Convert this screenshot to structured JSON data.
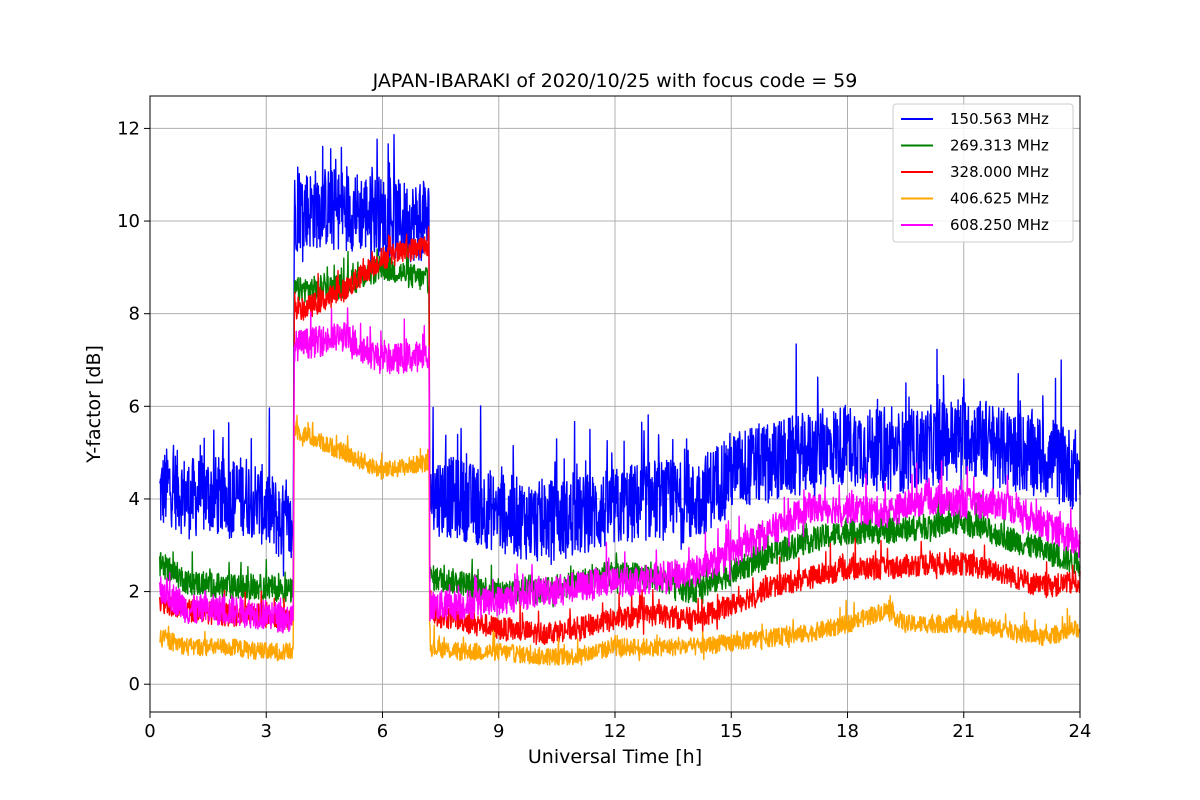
{
  "chart_data": {
    "type": "line",
    "title": "JAPAN-IBARAKI of 2020/10/25 with focus code = 59",
    "xlabel": "Universal Time [h]",
    "ylabel": "Y-factor [dB]",
    "xlim": [
      0,
      24
    ],
    "ylim": [
      -0.6,
      12.7
    ],
    "xticks": [
      0,
      3,
      6,
      9,
      12,
      15,
      18,
      21,
      24
    ],
    "yticks": [
      0,
      2,
      4,
      6,
      8,
      10,
      12
    ],
    "grid": true,
    "legend_position": "top-right",
    "x_start": 0.25,
    "x_end": 24,
    "gaps": [
      [
        3.7,
        3.72
      ],
      [
        7.2,
        7.22
      ]
    ],
    "series": [
      {
        "name": "150.563 MHz",
        "color": "#0000ff",
        "anchors": [
          [
            0.25,
            4.1
          ],
          [
            0.5,
            4.3
          ],
          [
            1.0,
            4.0
          ],
          [
            1.5,
            4.1
          ],
          [
            2.0,
            4.0
          ],
          [
            2.5,
            4.1
          ],
          [
            3.0,
            3.8
          ],
          [
            3.5,
            3.4
          ],
          [
            3.7,
            3.3
          ],
          [
            3.72,
            10.2
          ],
          [
            4.5,
            10.3
          ],
          [
            5.5,
            10.2
          ],
          [
            6.5,
            10.0
          ],
          [
            7.2,
            10.0
          ],
          [
            7.22,
            4.1
          ],
          [
            8.0,
            4.0
          ],
          [
            9.0,
            3.7
          ],
          [
            10.0,
            3.5
          ],
          [
            11.0,
            3.6
          ],
          [
            12.0,
            3.8
          ],
          [
            13.0,
            4.0
          ],
          [
            14.0,
            3.9
          ],
          [
            15.0,
            4.6
          ],
          [
            16.0,
            4.8
          ],
          [
            17.0,
            5.0
          ],
          [
            18.0,
            5.2
          ],
          [
            19.0,
            5.0
          ],
          [
            20.0,
            5.1
          ],
          [
            21.0,
            5.4
          ],
          [
            22.0,
            5.1
          ],
          [
            23.0,
            4.9
          ],
          [
            24.0,
            4.6
          ]
        ],
        "noise": 1.6
      },
      {
        "name": "269.313 MHz",
        "color": "#008000",
        "anchors": [
          [
            0.25,
            2.6
          ],
          [
            1.0,
            2.2
          ],
          [
            2.0,
            2.1
          ],
          [
            3.0,
            2.1
          ],
          [
            3.7,
            2.0
          ],
          [
            3.72,
            8.5
          ],
          [
            5.0,
            8.6
          ],
          [
            6.0,
            9.0
          ],
          [
            7.2,
            8.7
          ],
          [
            7.22,
            2.3
          ],
          [
            8.0,
            2.2
          ],
          [
            9.0,
            2.0
          ],
          [
            10.0,
            2.0
          ],
          [
            11.0,
            2.2
          ],
          [
            12.0,
            2.4
          ],
          [
            13.0,
            2.3
          ],
          [
            14.0,
            2.0
          ],
          [
            15.0,
            2.4
          ],
          [
            16.0,
            2.8
          ],
          [
            17.0,
            3.1
          ],
          [
            18.0,
            3.3
          ],
          [
            19.0,
            3.3
          ],
          [
            20.0,
            3.4
          ],
          [
            21.0,
            3.5
          ],
          [
            22.0,
            3.2
          ],
          [
            23.0,
            2.9
          ],
          [
            24.0,
            2.6
          ]
        ],
        "noise": 0.5
      },
      {
        "name": "328.000 MHz",
        "color": "#ff0000",
        "anchors": [
          [
            0.25,
            1.8
          ],
          [
            1.0,
            1.6
          ],
          [
            2.0,
            1.5
          ],
          [
            3.0,
            1.5
          ],
          [
            3.7,
            1.4
          ],
          [
            3.72,
            8.0
          ],
          [
            5.0,
            8.5
          ],
          [
            6.0,
            9.2
          ],
          [
            7.2,
            9.5
          ],
          [
            7.22,
            1.5
          ],
          [
            8.0,
            1.4
          ],
          [
            9.0,
            1.2
          ],
          [
            10.0,
            1.1
          ],
          [
            11.0,
            1.2
          ],
          [
            12.0,
            1.4
          ],
          [
            13.0,
            1.5
          ],
          [
            14.0,
            1.4
          ],
          [
            15.0,
            1.7
          ],
          [
            16.0,
            2.1
          ],
          [
            17.0,
            2.3
          ],
          [
            18.0,
            2.5
          ],
          [
            19.0,
            2.5
          ],
          [
            20.0,
            2.6
          ],
          [
            21.0,
            2.6
          ],
          [
            22.0,
            2.4
          ],
          [
            23.0,
            2.1
          ],
          [
            24.0,
            2.2
          ]
        ],
        "noise": 0.45
      },
      {
        "name": "406.625 MHz",
        "color": "#ffa500",
        "anchors": [
          [
            0.25,
            1.0
          ],
          [
            1.0,
            0.8
          ],
          [
            2.0,
            0.8
          ],
          [
            3.0,
            0.7
          ],
          [
            3.7,
            0.7
          ],
          [
            3.72,
            5.5
          ],
          [
            5.0,
            5.0
          ],
          [
            6.0,
            4.6
          ],
          [
            7.2,
            4.8
          ],
          [
            7.22,
            0.8
          ],
          [
            8.0,
            0.7
          ],
          [
            9.0,
            0.7
          ],
          [
            10.0,
            0.6
          ],
          [
            11.0,
            0.6
          ],
          [
            12.0,
            0.8
          ],
          [
            13.0,
            0.8
          ],
          [
            14.0,
            0.8
          ],
          [
            15.0,
            0.9
          ],
          [
            16.0,
            1.0
          ],
          [
            17.0,
            1.1
          ],
          [
            18.0,
            1.3
          ],
          [
            19.0,
            1.6
          ],
          [
            19.5,
            1.3
          ],
          [
            20.0,
            1.3
          ],
          [
            21.0,
            1.3
          ],
          [
            22.0,
            1.2
          ],
          [
            23.0,
            1.0
          ],
          [
            24.0,
            1.2
          ]
        ],
        "noise": 0.35
      },
      {
        "name": "608.250 MHz",
        "color": "#ff00ff",
        "anchors": [
          [
            0.25,
            2.1
          ],
          [
            1.0,
            1.6
          ],
          [
            2.0,
            1.6
          ],
          [
            3.0,
            1.5
          ],
          [
            3.7,
            1.4
          ],
          [
            3.72,
            7.3
          ],
          [
            5.0,
            7.5
          ],
          [
            6.0,
            7.0
          ],
          [
            7.2,
            7.1
          ],
          [
            7.22,
            1.7
          ],
          [
            8.0,
            1.7
          ],
          [
            9.0,
            1.8
          ],
          [
            10.0,
            2.0
          ],
          [
            11.0,
            2.1
          ],
          [
            12.0,
            2.2
          ],
          [
            13.0,
            2.3
          ],
          [
            14.0,
            2.4
          ],
          [
            15.0,
            2.8
          ],
          [
            16.0,
            3.3
          ],
          [
            17.0,
            3.8
          ],
          [
            18.0,
            3.8
          ],
          [
            19.0,
            3.7
          ],
          [
            20.0,
            4.0
          ],
          [
            21.0,
            3.9
          ],
          [
            22.0,
            3.9
          ],
          [
            23.0,
            3.5
          ],
          [
            24.0,
            3.0
          ]
        ],
        "noise": 0.6
      }
    ]
  }
}
